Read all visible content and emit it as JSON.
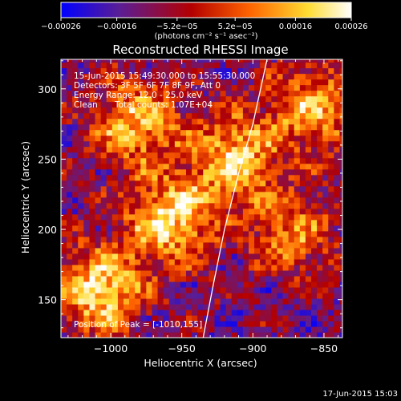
{
  "chart_data": {
    "type": "heatmap",
    "title": "Reconstructed RHESSI Image",
    "xlabel": "Heliocentric X (arcsec)",
    "ylabel": "Heliocentric Y (arcsec)",
    "xlim": [
      -1035,
      -837
    ],
    "ylim": [
      123,
      321
    ],
    "x_ticks": [
      -1000,
      -950,
      -900,
      -850
    ],
    "x_tick_labels": [
      "−1000",
      "−950",
      "−900",
      "−850"
    ],
    "y_ticks": [
      150,
      200,
      250,
      300
    ],
    "y_tick_labels": [
      "150",
      "200",
      "250",
      "300"
    ],
    "colorbar": {
      "range": [
        -0.00026,
        0.00026
      ],
      "ticks": [
        -0.00026,
        -0.00016,
        -5.2e-05,
        5.2e-05,
        0.00016,
        0.00026
      ],
      "tick_labels": [
        "−0.00026",
        "−0.00016",
        "−5.2e−05",
        "5.2e−05",
        "0.00016",
        "0.00026"
      ],
      "label": "(photons cm⁻² s⁻¹ asec⁻²)",
      "colors": [
        "#0000ff",
        "#5a1e96",
        "#b40000",
        "#ff6400",
        "#ffdc32",
        "#ffffff"
      ]
    },
    "limb_curve": [
      [
        -935,
        123
      ],
      [
        -928,
        160
      ],
      [
        -920,
        200
      ],
      [
        -910,
        240
      ],
      [
        -900,
        275
      ],
      [
        -890,
        321
      ]
    ],
    "bright_regions": [
      {
        "x": -960,
        "y": 205,
        "level": 0.95
      },
      {
        "x": -915,
        "y": 250,
        "level": 0.85
      },
      {
        "x": -1010,
        "y": 155,
        "level": 0.95
      },
      {
        "x": -985,
        "y": 275,
        "level": 0.8
      },
      {
        "x": -860,
        "y": 285,
        "level": 0.75
      },
      {
        "x": -875,
        "y": 195,
        "level": 0.6
      }
    ],
    "grid": false
  },
  "overlay": {
    "time_range": "15-Jun-2015 15:49:30.000 to 15:55:30.000",
    "detectors": "Detectors: 3F 5F 6F 7F 8F 9F, Att 0",
    "energy": "Energy Range: 12.0 - 25.0 keV",
    "algorithm": "Clean",
    "total_counts": "Total counts: 1.07E+04",
    "peak": "Position of Peak = [-1010,155]"
  },
  "timestamp": "17-Jun-2015 15:03"
}
